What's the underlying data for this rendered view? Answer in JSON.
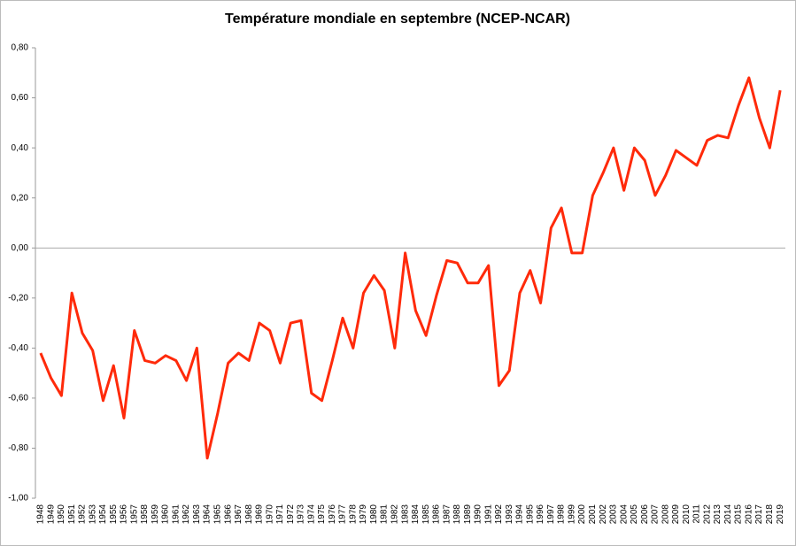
{
  "chart_data": {
    "type": "line",
    "title": "Température mondiale en septembre (NCEP-NCAR)",
    "categories": [
      "1948",
      "1949",
      "1950",
      "1951",
      "1952",
      "1953",
      "1954",
      "1955",
      "1956",
      "1957",
      "1958",
      "1959",
      "1960",
      "1961",
      "1962",
      "1963",
      "1964",
      "1965",
      "1966",
      "1967",
      "1968",
      "1969",
      "1970",
      "1971",
      "1972",
      "1973",
      "1974",
      "1975",
      "1976",
      "1977",
      "1978",
      "1979",
      "1980",
      "1981",
      "1982",
      "1983",
      "1984",
      "1985",
      "1986",
      "1987",
      "1988",
      "1989",
      "1990",
      "1991",
      "1992",
      "1993",
      "1994",
      "1995",
      "1996",
      "1997",
      "1998",
      "1999",
      "2000",
      "2001",
      "2002",
      "2003",
      "2004",
      "2005",
      "2006",
      "2007",
      "2008",
      "2009",
      "2010",
      "2011",
      "2012",
      "2013",
      "2014",
      "2015",
      "2016",
      "2017",
      "2018",
      "2019"
    ],
    "series": [
      {
        "color": "#ff2a0a",
        "values": [
          -0.42,
          -0.52,
          -0.59,
          -0.18,
          -0.34,
          -0.41,
          -0.61,
          -0.47,
          -0.68,
          -0.33,
          -0.45,
          -0.46,
          -0.43,
          -0.45,
          -0.53,
          -0.4,
          -0.84,
          -0.66,
          -0.46,
          -0.42,
          -0.45,
          -0.3,
          -0.33,
          -0.46,
          -0.3,
          -0.29,
          -0.58,
          -0.61,
          -0.45,
          -0.28,
          -0.4,
          -0.18,
          -0.11,
          -0.17,
          -0.4,
          -0.02,
          -0.25,
          -0.35,
          -0.19,
          -0.05,
          -0.06,
          -0.14,
          -0.14,
          -0.07,
          -0.55,
          -0.49,
          -0.18,
          -0.09,
          -0.22,
          0.08,
          0.16,
          -0.02,
          -0.02,
          0.21,
          0.3,
          0.4,
          0.23,
          0.4,
          0.35,
          0.21,
          0.29,
          0.39,
          0.36,
          0.33,
          0.43,
          0.45,
          0.44,
          0.57,
          0.68,
          0.52,
          0.4,
          0.63
        ]
      }
    ],
    "ylim": [
      -1.0,
      0.8
    ],
    "yticks": [
      {
        "value": -1.0,
        "label": "-1,00"
      },
      {
        "value": -0.8,
        "label": "-0,80"
      },
      {
        "value": -0.6,
        "label": "-0,60"
      },
      {
        "value": -0.4,
        "label": "-0,40"
      },
      {
        "value": -0.2,
        "label": "-0,20"
      },
      {
        "value": 0,
        "label": "0,00"
      },
      {
        "value": 0.2,
        "label": "0,20"
      },
      {
        "value": 0.4,
        "label": "0,40"
      },
      {
        "value": 0.6,
        "label": "0,60"
      },
      {
        "value": 0.8,
        "label": "0,80"
      }
    ],
    "grid": false
  }
}
